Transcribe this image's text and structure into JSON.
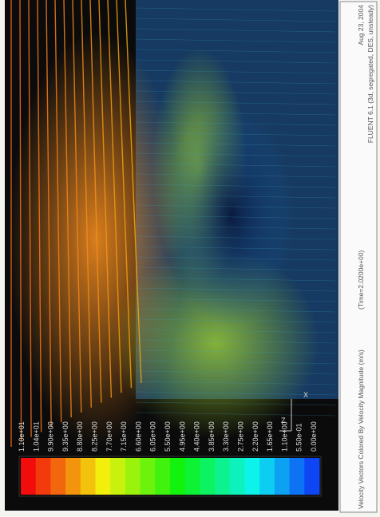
{
  "colorbar": {
    "labels": [
      "1.10e+01",
      "1.04e+01",
      "9.90e+00",
      "9.35e+00",
      "8.80e+00",
      "8.25e+00",
      "7.70e+00",
      "7.15e+00",
      "6.60e+00",
      "6.05e+00",
      "5.50e+00",
      "4.95e+00",
      "4.40e+00",
      "3.85e+00",
      "3.30e+00",
      "2.75e+00",
      "2.20e+00",
      "1.65e+00",
      "1.10e+00",
      "5.50e-01",
      "0.00e+00"
    ]
  },
  "axes": {
    "z": "Z",
    "x": "X"
  },
  "caption": {
    "title": "Velocity Vectors Colored By Velocity Magnitude (m/s)",
    "time": "(Time=2.0200e+00)",
    "date": "Aug 23, 2004",
    "solver": "FLUENT 6.1 (3d, segregated, DES, unsteady)"
  }
}
